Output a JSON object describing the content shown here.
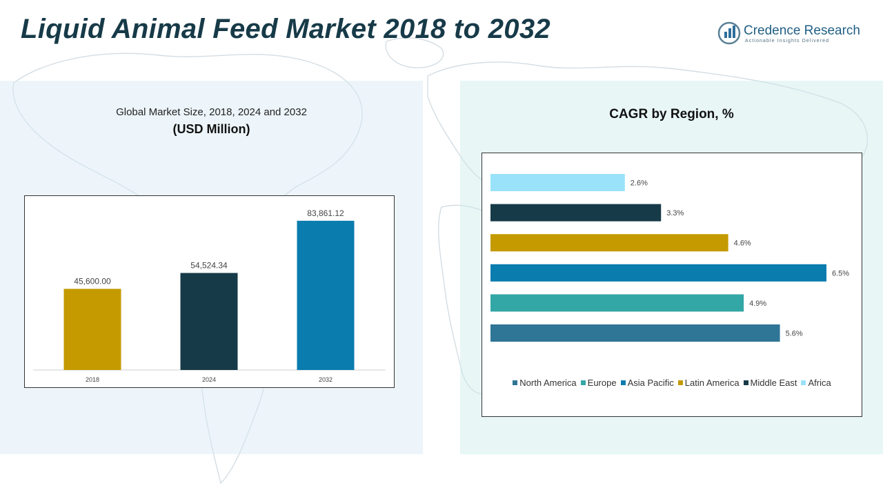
{
  "header": {
    "title": "Liquid Animal Feed Market 2018 to 2032",
    "logo_name": "Credence Research",
    "logo_tagline": "Actionable Insights Delivered"
  },
  "chart_data": [
    {
      "type": "bar",
      "title": "Global Market Size, 2018, 2024 and 2032",
      "subtitle": "(USD Million)",
      "categories": [
        "2018",
        "2024",
        "2032"
      ],
      "values": [
        45600.0,
        54524.34,
        83861.12
      ],
      "value_labels": [
        "45,600.00",
        "54,524.34",
        "83,861.12"
      ],
      "colors": [
        "#c49a00",
        "#173a48",
        "#0a7cae"
      ],
      "ylim": [
        0,
        90000
      ],
      "grid": false,
      "legend": "none"
    },
    {
      "type": "bar",
      "orientation": "horizontal",
      "title": "CAGR by Region, %",
      "categories": [
        "Africa",
        "Middle East",
        "Latin America",
        "Asia Pacific",
        "Europe",
        "North America"
      ],
      "values": [
        2.6,
        3.3,
        4.6,
        6.5,
        4.9,
        5.6
      ],
      "value_labels": [
        "2.6%",
        "3.3%",
        "4.6%",
        "6.5%",
        "4.9%",
        "5.6%"
      ],
      "colors": [
        "#99e2fa",
        "#173a48",
        "#c49a00",
        "#0a7cae",
        "#33a6a6",
        "#2f7596"
      ],
      "xlim": [
        0,
        6.5
      ],
      "grid": false,
      "legend": "bottom",
      "legend_entries": [
        {
          "name": "North America",
          "color": "#2f7596"
        },
        {
          "name": "Europe",
          "color": "#33a6a6"
        },
        {
          "name": "Asia Pacific",
          "color": "#0a7cae"
        },
        {
          "name": "Latin America",
          "color": "#c49a00"
        },
        {
          "name": "Middle East",
          "color": "#173a48"
        },
        {
          "name": "Africa",
          "color": "#99e2fa"
        }
      ]
    }
  ]
}
